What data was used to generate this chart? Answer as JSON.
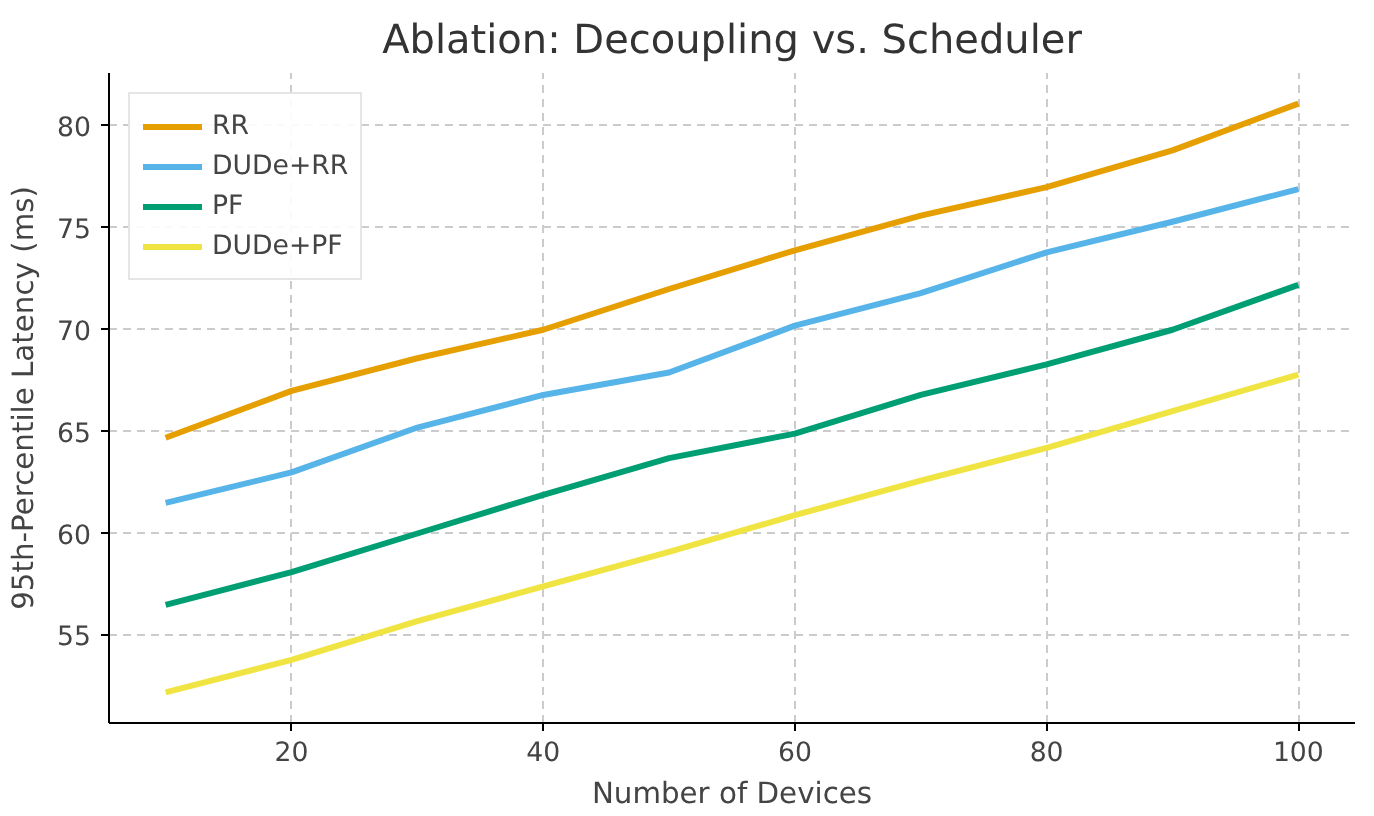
{
  "chart_data": {
    "type": "line",
    "title": "Ablation: Decoupling vs. Scheduler",
    "xlabel": "Number of Devices",
    "ylabel": "95th-Percentile Latency (ms)",
    "x": [
      10,
      20,
      30,
      40,
      50,
      60,
      70,
      80,
      90,
      100
    ],
    "series": [
      {
        "name": "RR",
        "color": "#e69f00",
        "values": [
          64.7,
          67.0,
          68.6,
          70.0,
          72.0,
          73.9,
          75.6,
          77.0,
          78.8,
          81.1
        ]
      },
      {
        "name": "DUDe+RR",
        "color": "#56b4e9",
        "values": [
          61.5,
          63.0,
          65.2,
          66.8,
          67.9,
          70.2,
          71.8,
          73.8,
          75.3,
          76.9
        ]
      },
      {
        "name": "PF",
        "color": "#009e73",
        "values": [
          56.5,
          58.1,
          60.0,
          61.9,
          63.7,
          64.9,
          66.8,
          68.3,
          70.0,
          72.2
        ]
      },
      {
        "name": "DUDe+PF",
        "color": "#f0e442",
        "values": [
          52.2,
          53.8,
          55.7,
          57.4,
          59.1,
          60.9,
          62.6,
          64.2,
          66.0,
          67.8
        ]
      }
    ],
    "xlim": [
      5.5,
      104.5
    ],
    "ylim": [
      50.7,
      82.6
    ],
    "xticks": [
      20,
      40,
      60,
      80,
      100
    ],
    "yticks": [
      55,
      60,
      65,
      70,
      75,
      80
    ],
    "grid": true,
    "legend": "top left",
    "marker": "none",
    "line_style": "solid"
  }
}
